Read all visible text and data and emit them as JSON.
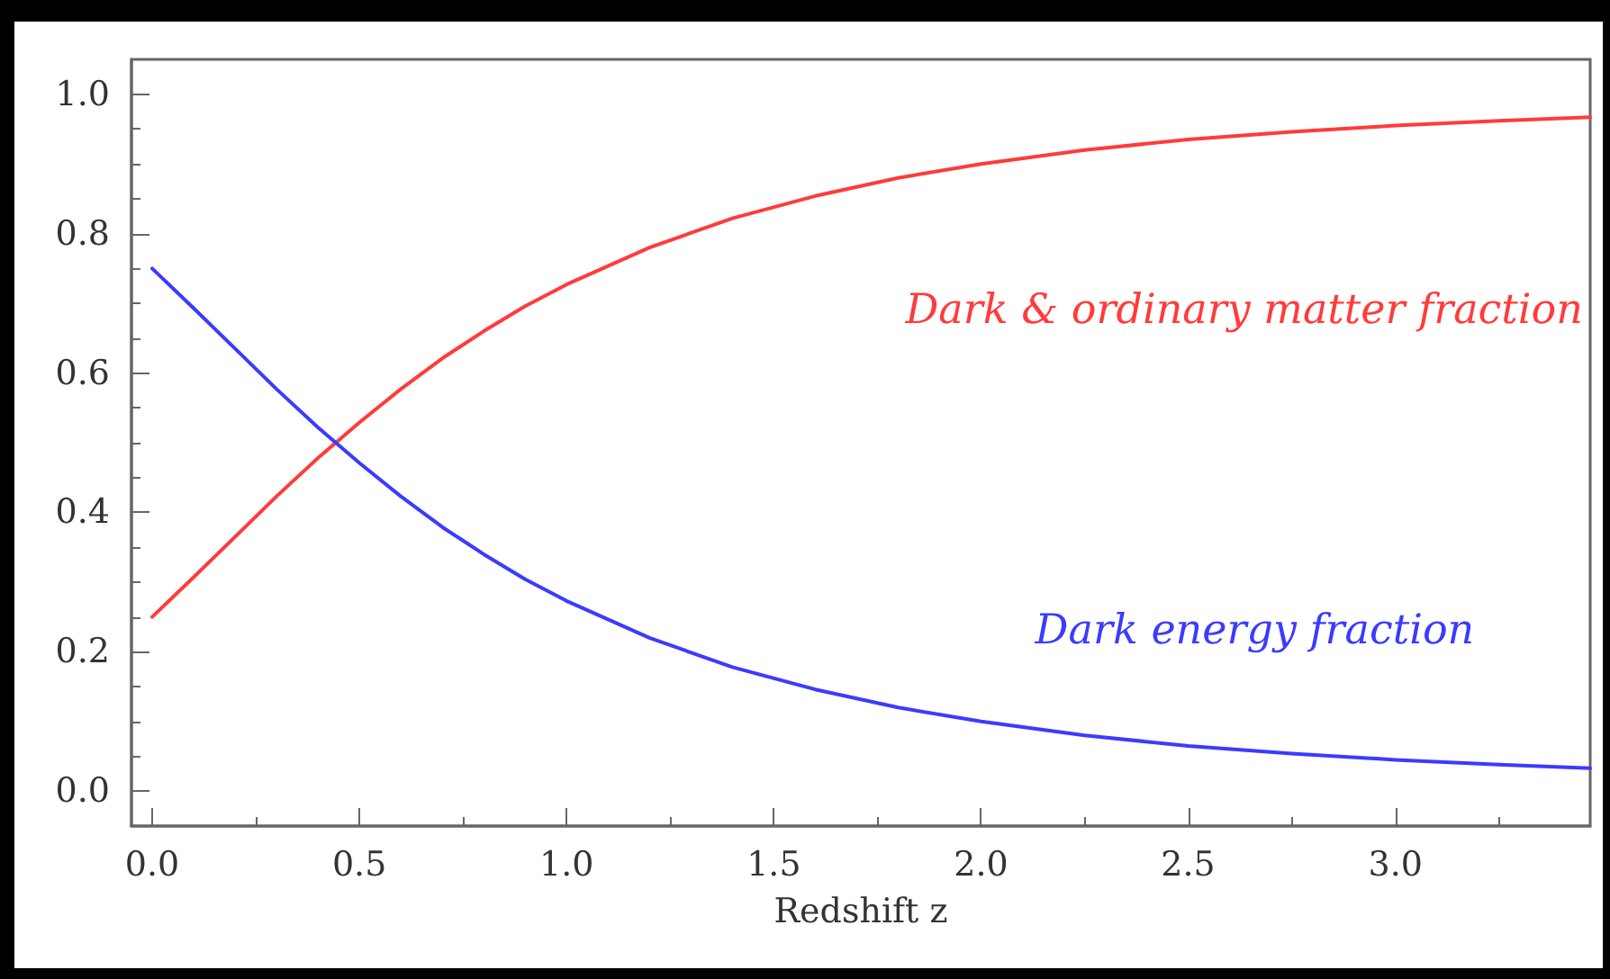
{
  "chart_data": {
    "type": "line",
    "xlabel": "Redshift z",
    "x": [
      0,
      0.1,
      0.2,
      0.3,
      0.4,
      0.5,
      0.6,
      0.7,
      0.8,
      0.9,
      1.0,
      1.2,
      1.4,
      1.6,
      1.8,
      2.0,
      2.25,
      2.5,
      2.75,
      3.0,
      3.25,
      3.47
    ],
    "series": [
      {
        "name": "Dark & ordinary matter fraction",
        "color": "#ff3b3b",
        "values": [
          0.25,
          0.307,
          0.365,
          0.423,
          0.478,
          0.529,
          0.577,
          0.621,
          0.66,
          0.696,
          0.727,
          0.78,
          0.822,
          0.854,
          0.88,
          0.9,
          0.92,
          0.935,
          0.946,
          0.955,
          0.962,
          0.967
        ]
      },
      {
        "name": "Dark energy fraction",
        "color": "#3b3bff",
        "values": [
          0.75,
          0.693,
          0.635,
          0.577,
          0.522,
          0.471,
          0.423,
          0.379,
          0.34,
          0.304,
          0.273,
          0.22,
          0.178,
          0.146,
          0.12,
          0.1,
          0.08,
          0.065,
          0.054,
          0.045,
          0.038,
          0.033
        ]
      }
    ],
    "xlim": [
      -0.05,
      3.47
    ],
    "xticks": [
      {
        "value": 0,
        "label": "0.0"
      },
      0.5,
      {
        "value": 1,
        "label": "1.0"
      },
      1.5,
      {
        "value": 2,
        "label": "2.0"
      },
      2.5,
      {
        "value": 3,
        "label": "3.0"
      }
    ],
    "ylim": [
      -0.05,
      1.05
    ],
    "yticks": [
      {
        "value": 0,
        "label": "0.0"
      },
      0.2,
      0.4,
      0.6,
      0.8,
      {
        "value": 1,
        "label": "1.0"
      }
    ],
    "grid": false,
    "legend": false,
    "marker": "none",
    "line_style": "solid"
  }
}
